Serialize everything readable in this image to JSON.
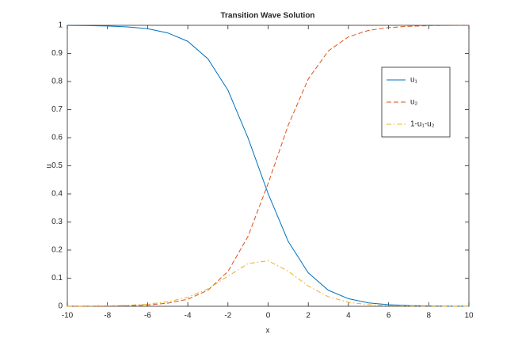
{
  "chart_data": {
    "type": "line",
    "title": "Transition Wave Solution",
    "xlabel": "x",
    "ylabel": "u",
    "x": [
      -10,
      -9,
      -8,
      -7,
      -6,
      -5,
      -4,
      -3,
      -2,
      -1,
      0,
      1,
      2,
      3,
      4,
      5,
      6,
      7,
      8,
      9,
      10
    ],
    "series": [
      {
        "name": "u₁",
        "color": "#0072bd",
        "dash": "solid",
        "values": [
          0.9995,
          0.9989,
          0.9975,
          0.9945,
          0.988,
          0.973,
          0.943,
          0.881,
          0.769,
          0.599,
          0.401,
          0.231,
          0.119,
          0.057,
          0.027,
          0.012,
          0.0055,
          0.0025,
          0.0011,
          0.0005,
          0.0002
        ]
      },
      {
        "name": "u₂",
        "color": "#d95319",
        "dash": "dashed",
        "values": [
          0.0002,
          0.0004,
          0.0009,
          0.002,
          0.0047,
          0.011,
          0.025,
          0.057,
          0.124,
          0.249,
          0.437,
          0.644,
          0.809,
          0.909,
          0.959,
          0.982,
          0.992,
          0.9966,
          0.9986,
          0.9994,
          0.9997
        ]
      },
      {
        "name": "1-u₁-u₂",
        "color": "#edb120",
        "dash": "dashdot",
        "values": [
          0.0003,
          0.0007,
          0.0016,
          0.0035,
          0.0073,
          0.016,
          0.032,
          0.062,
          0.107,
          0.152,
          0.162,
          0.125,
          0.072,
          0.034,
          0.014,
          0.006,
          0.0025,
          0.0009,
          0.0003,
          0.0001,
          0.0001
        ]
      }
    ],
    "xlim": [
      -10,
      10
    ],
    "xticks": [
      -10,
      -8,
      -6,
      -4,
      -2,
      0,
      2,
      4,
      6,
      8,
      10
    ],
    "ylim": [
      0,
      1
    ],
    "yticks": [
      0,
      0.1,
      0.2,
      0.3,
      0.4,
      0.5,
      0.6,
      0.7,
      0.8,
      0.9,
      1
    ],
    "grid": false,
    "legend": "northeast"
  }
}
